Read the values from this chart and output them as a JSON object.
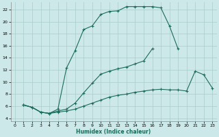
{
  "xlabel": "Humidex (Indice chaleur)",
  "background_color": "#cce8e8",
  "grid_color": "#aacccc",
  "line_color": "#1a6b5a",
  "xlim": [
    -0.5,
    23.5
  ],
  "ylim": [
    3.5,
    23.2
  ],
  "xticks": [
    0,
    1,
    2,
    3,
    4,
    5,
    6,
    7,
    8,
    9,
    10,
    11,
    12,
    13,
    14,
    15,
    16,
    17,
    18,
    19,
    20,
    21,
    22,
    23
  ],
  "yticks": [
    4,
    6,
    8,
    10,
    12,
    14,
    16,
    18,
    20,
    22
  ],
  "curve1_x": [
    1,
    2,
    3,
    4,
    5,
    6,
    7,
    8,
    9,
    10,
    11,
    12,
    13,
    14,
    15,
    16,
    17,
    18,
    19
  ],
  "curve1_y": [
    6.2,
    5.8,
    5.0,
    4.8,
    5.5,
    12.3,
    15.2,
    18.7,
    19.3,
    21.2,
    21.7,
    21.8,
    22.5,
    22.5,
    22.5,
    22.5,
    22.3,
    19.3,
    15.5
  ],
  "curve2_x": [
    1,
    2,
    3,
    4,
    5,
    6,
    7,
    8,
    9,
    10,
    11,
    12,
    13,
    14,
    15,
    16,
    17,
    18,
    19,
    20,
    21,
    22,
    23
  ],
  "curve2_y": [
    6.2,
    5.8,
    5.0,
    4.8,
    5.2,
    5.5,
    6.5,
    8.2,
    9.8,
    11.3,
    11.8,
    12.2,
    12.5,
    13.0,
    13.5,
    15.5,
    null,
    null,
    null,
    null,
    null,
    null,
    null
  ],
  "curve3_x": [
    1,
    2,
    3,
    4,
    5,
    6,
    7,
    8,
    9,
    10,
    11,
    12,
    13,
    14,
    15,
    16,
    17,
    18,
    19,
    20,
    21,
    22,
    23
  ],
  "curve3_y": [
    6.2,
    5.8,
    5.0,
    4.8,
    5.0,
    5.2,
    5.5,
    6.0,
    6.5,
    7.0,
    7.5,
    7.8,
    8.0,
    8.3,
    8.5,
    8.7,
    8.8,
    8.7,
    8.7,
    8.5,
    11.8,
    11.2,
    9.0
  ]
}
